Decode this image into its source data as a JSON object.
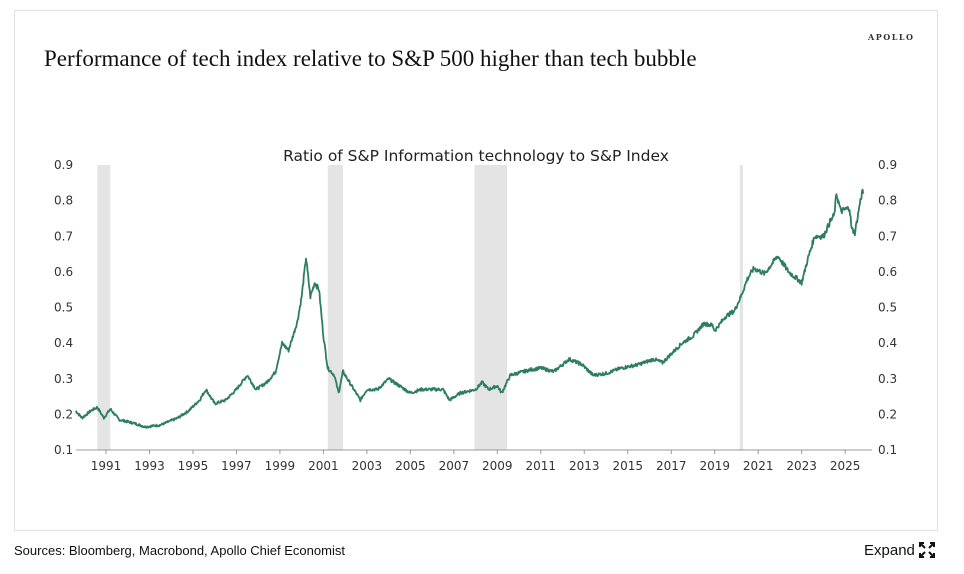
{
  "header": {
    "brand": "APOLLO",
    "title": "Performance of tech index relative to S&P 500 higher than tech bubble"
  },
  "footer": {
    "sources": "Sources: Bloomberg, Macrobond, Apollo Chief Economist",
    "expand_label": "Expand",
    "expand_icon": "expand-arrows-icon"
  },
  "colors": {
    "line": "#2e7d63",
    "recession": "#e3e4e3",
    "axis": "#999999"
  },
  "chart_data": {
    "type": "line",
    "title": "Ratio of S&P Information technology to S&P Index",
    "xlabel": "",
    "ylabel": "",
    "xlim": [
      1989.6,
      2026.2
    ],
    "ylim": [
      0.1,
      0.9
    ],
    "yticks": [
      "0.1",
      "0.2",
      "0.3",
      "0.4",
      "0.5",
      "0.6",
      "0.7",
      "0.8",
      "0.9"
    ],
    "xticks": [
      "1991",
      "1993",
      "1995",
      "1997",
      "1999",
      "2001",
      "2003",
      "2005",
      "2007",
      "2009",
      "2011",
      "2013",
      "2015",
      "2017",
      "2019",
      "2021",
      "2023",
      "2025"
    ],
    "recessions": [
      [
        1990.6,
        1991.2
      ],
      [
        2001.2,
        2001.9
      ],
      [
        2007.95,
        2009.45
      ],
      [
        2020.15,
        2020.3
      ]
    ],
    "series": [
      {
        "name": "Ratio",
        "points": [
          [
            1989.6,
            0.21
          ],
          [
            1989.9,
            0.19
          ],
          [
            1990.3,
            0.21
          ],
          [
            1990.6,
            0.22
          ],
          [
            1990.9,
            0.19
          ],
          [
            1991.2,
            0.215
          ],
          [
            1991.6,
            0.185
          ],
          [
            1992.3,
            0.175
          ],
          [
            1992.8,
            0.165
          ],
          [
            1993.5,
            0.17
          ],
          [
            1994.3,
            0.19
          ],
          [
            1994.8,
            0.21
          ],
          [
            1995.3,
            0.24
          ],
          [
            1995.6,
            0.27
          ],
          [
            1996.0,
            0.23
          ],
          [
            1996.5,
            0.24
          ],
          [
            1997.0,
            0.27
          ],
          [
            1997.5,
            0.31
          ],
          [
            1997.9,
            0.27
          ],
          [
            1998.4,
            0.29
          ],
          [
            1998.8,
            0.32
          ],
          [
            1999.1,
            0.4
          ],
          [
            1999.4,
            0.38
          ],
          [
            1999.8,
            0.46
          ],
          [
            2000.0,
            0.53
          ],
          [
            2000.2,
            0.64
          ],
          [
            2000.4,
            0.53
          ],
          [
            2000.6,
            0.57
          ],
          [
            2000.8,
            0.55
          ],
          [
            2001.0,
            0.42
          ],
          [
            2001.2,
            0.33
          ],
          [
            2001.5,
            0.31
          ],
          [
            2001.7,
            0.26
          ],
          [
            2001.9,
            0.32
          ],
          [
            2002.3,
            0.28
          ],
          [
            2002.7,
            0.24
          ],
          [
            2003.0,
            0.27
          ],
          [
            2003.5,
            0.27
          ],
          [
            2004.0,
            0.3
          ],
          [
            2004.5,
            0.28
          ],
          [
            2005.0,
            0.26
          ],
          [
            2005.5,
            0.27
          ],
          [
            2006.5,
            0.27
          ],
          [
            2006.8,
            0.24
          ],
          [
            2007.3,
            0.26
          ],
          [
            2008.0,
            0.27
          ],
          [
            2008.3,
            0.29
          ],
          [
            2008.6,
            0.27
          ],
          [
            2009.0,
            0.28
          ],
          [
            2009.2,
            0.26
          ],
          [
            2009.6,
            0.31
          ],
          [
            2010.5,
            0.325
          ],
          [
            2011.0,
            0.33
          ],
          [
            2011.6,
            0.32
          ],
          [
            2012.3,
            0.355
          ],
          [
            2012.9,
            0.34
          ],
          [
            2013.4,
            0.31
          ],
          [
            2014.0,
            0.315
          ],
          [
            2014.7,
            0.33
          ],
          [
            2015.5,
            0.34
          ],
          [
            2016.2,
            0.355
          ],
          [
            2016.6,
            0.345
          ],
          [
            2017.0,
            0.37
          ],
          [
            2017.5,
            0.4
          ],
          [
            2018.0,
            0.42
          ],
          [
            2018.5,
            0.455
          ],
          [
            2018.9,
            0.45
          ],
          [
            2019.0,
            0.435
          ],
          [
            2019.5,
            0.475
          ],
          [
            2019.9,
            0.49
          ],
          [
            2020.2,
            0.53
          ],
          [
            2020.5,
            0.58
          ],
          [
            2020.8,
            0.61
          ],
          [
            2021.3,
            0.595
          ],
          [
            2021.6,
            0.62
          ],
          [
            2021.9,
            0.645
          ],
          [
            2022.4,
            0.6
          ],
          [
            2022.8,
            0.58
          ],
          [
            2023.0,
            0.57
          ],
          [
            2023.3,
            0.64
          ],
          [
            2023.6,
            0.7
          ],
          [
            2024.0,
            0.7
          ],
          [
            2024.3,
            0.74
          ],
          [
            2024.5,
            0.76
          ],
          [
            2024.6,
            0.82
          ],
          [
            2024.8,
            0.77
          ],
          [
            2025.2,
            0.78
          ],
          [
            2025.3,
            0.72
          ],
          [
            2025.45,
            0.71
          ],
          [
            2025.7,
            0.8
          ],
          [
            2025.8,
            0.83
          ],
          [
            2025.85,
            0.82
          ]
        ]
      }
    ]
  }
}
